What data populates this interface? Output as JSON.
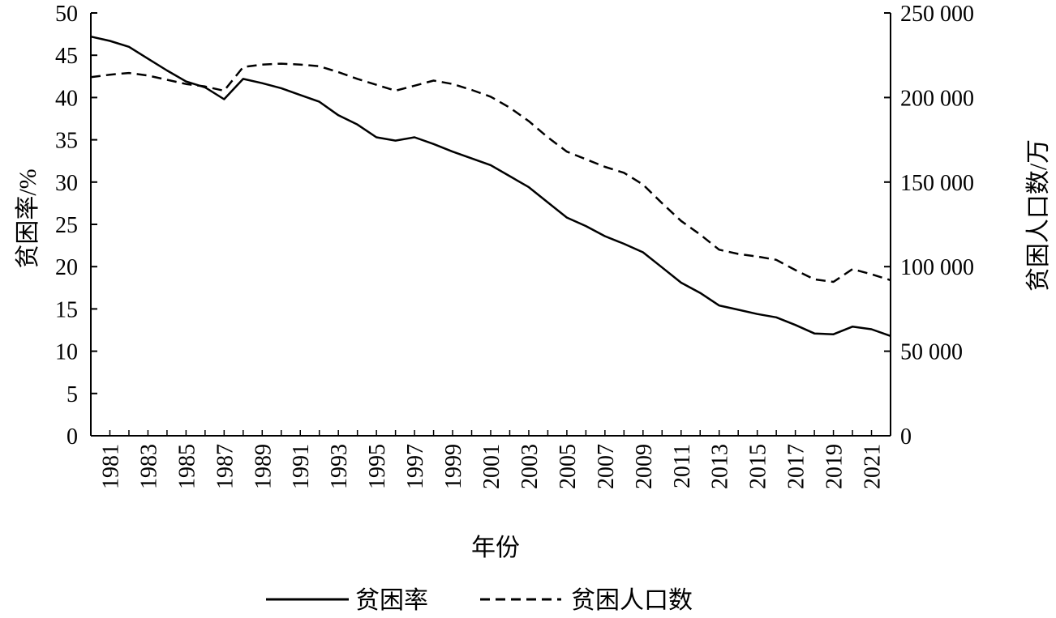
{
  "chart_data": {
    "type": "line",
    "title": "",
    "xlabel": "年份",
    "ylabel_left": "贫困率/%",
    "ylabel_right": "贫困人口数/万",
    "x_tick_labels": [
      "1981",
      "1983",
      "1985",
      "1987",
      "1989",
      "1991",
      "1993",
      "1995",
      "1997",
      "1999",
      "2001",
      "2003",
      "2005",
      "2007",
      "2009",
      "2011",
      "2013",
      "2015",
      "2017",
      "2019",
      "2021"
    ],
    "y_left_ticks": [
      "0",
      "5",
      "10",
      "15",
      "20",
      "25",
      "30",
      "35",
      "40",
      "45",
      "50"
    ],
    "y_right_ticks": [
      "0",
      "50 000",
      "100 000",
      "150 000",
      "200 000",
      "250 000"
    ],
    "ylim_left": [
      0,
      50
    ],
    "ylim_right": [
      0,
      250000
    ],
    "xlim": [
      1980,
      2022
    ],
    "grid": false,
    "legend_position": "bottom-center",
    "series": [
      {
        "name": "贫困率",
        "axis": "left",
        "style": "solid",
        "x": [
          1980,
          1981,
          1982,
          1983,
          1984,
          1985,
          1986,
          1987,
          1988,
          1989,
          1990,
          1991,
          1992,
          1993,
          1994,
          1995,
          1996,
          1997,
          1998,
          1999,
          2000,
          2001,
          2002,
          2003,
          2004,
          2005,
          2006,
          2007,
          2008,
          2009,
          2010,
          2011,
          2012,
          2013,
          2014,
          2015,
          2016,
          2017,
          2018,
          2019,
          2020,
          2021,
          2022
        ],
        "values": [
          47.2,
          46.7,
          46.0,
          44.6,
          43.2,
          41.9,
          41.2,
          39.8,
          42.2,
          41.7,
          41.1,
          40.3,
          39.5,
          37.9,
          36.8,
          35.3,
          34.9,
          35.3,
          34.5,
          33.6,
          32.8,
          32.0,
          30.7,
          29.4,
          27.6,
          25.8,
          24.8,
          23.6,
          22.7,
          21.7,
          19.9,
          18.1,
          16.9,
          15.4,
          14.9,
          14.4,
          14.0,
          13.1,
          12.1,
          12.0,
          12.9,
          12.6,
          11.8
        ]
      },
      {
        "name": "贫困人口数",
        "axis": "right",
        "style": "dashed",
        "x": [
          1980,
          1981,
          1982,
          1983,
          1984,
          1985,
          1986,
          1987,
          1988,
          1989,
          1990,
          1991,
          1992,
          1993,
          1994,
          1995,
          1996,
          1997,
          1998,
          1999,
          2000,
          2001,
          2002,
          2003,
          2004,
          2005,
          2006,
          2007,
          2008,
          2009,
          2010,
          2011,
          2012,
          2013,
          2014,
          2015,
          2016,
          2017,
          2018,
          2019,
          2020,
          2021,
          2022
        ],
        "values": [
          212000,
          213500,
          214500,
          213000,
          210500,
          208000,
          206500,
          204000,
          218000,
          219500,
          220000,
          219500,
          218500,
          215000,
          211000,
          207500,
          204000,
          207000,
          210000,
          208000,
          204500,
          200500,
          194000,
          186000,
          176500,
          168000,
          163500,
          159000,
          155500,
          148500,
          137500,
          127000,
          119000,
          110000,
          107500,
          106000,
          104000,
          98000,
          92500,
          91000,
          98500,
          95500,
          92000
        ]
      }
    ],
    "legend": [
      {
        "label": "贫困率",
        "style": "solid"
      },
      {
        "label": "贫困人口数",
        "style": "dashed"
      }
    ]
  }
}
